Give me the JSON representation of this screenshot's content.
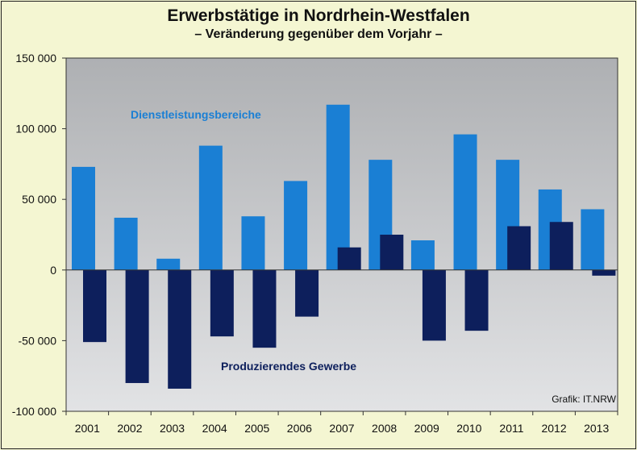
{
  "chart_data": {
    "type": "bar",
    "title": "Erwerbstätige in Nordrhein-Westfalen",
    "subtitle": "– Veränderung gegenüber dem Vorjahr –",
    "credit": "Grafik: IT.NRW",
    "categories": [
      "2001",
      "2002",
      "2003",
      "2004",
      "2005",
      "2006",
      "2007",
      "2008",
      "2009",
      "2010",
      "2011",
      "2012",
      "2013"
    ],
    "series": [
      {
        "name": "Dienstleistungsbereiche",
        "color": "#1a7fd4",
        "values": [
          73000,
          37000,
          8000,
          88000,
          38000,
          63000,
          117000,
          78000,
          21000,
          96000,
          78000,
          57000,
          43000
        ]
      },
      {
        "name": "Produzierendes Gewerbe",
        "color": "#0d1f5c",
        "values": [
          -51000,
          -80000,
          -84000,
          -47000,
          -55000,
          -33000,
          16000,
          25000,
          -50000,
          -43000,
          31000,
          34000,
          -4000
        ]
      }
    ],
    "ylim": [
      -100000,
      150000
    ],
    "yticks": [
      {
        "value": 150000,
        "label": "150 000"
      },
      {
        "value": 100000,
        "label": "100 000"
      },
      {
        "value": 50000,
        "label": "50 000"
      },
      {
        "value": 0,
        "label": "0"
      },
      {
        "value": -50000,
        "label": "-50 000"
      },
      {
        "value": -100000,
        "label": "-100 000"
      }
    ],
    "grid": false
  }
}
